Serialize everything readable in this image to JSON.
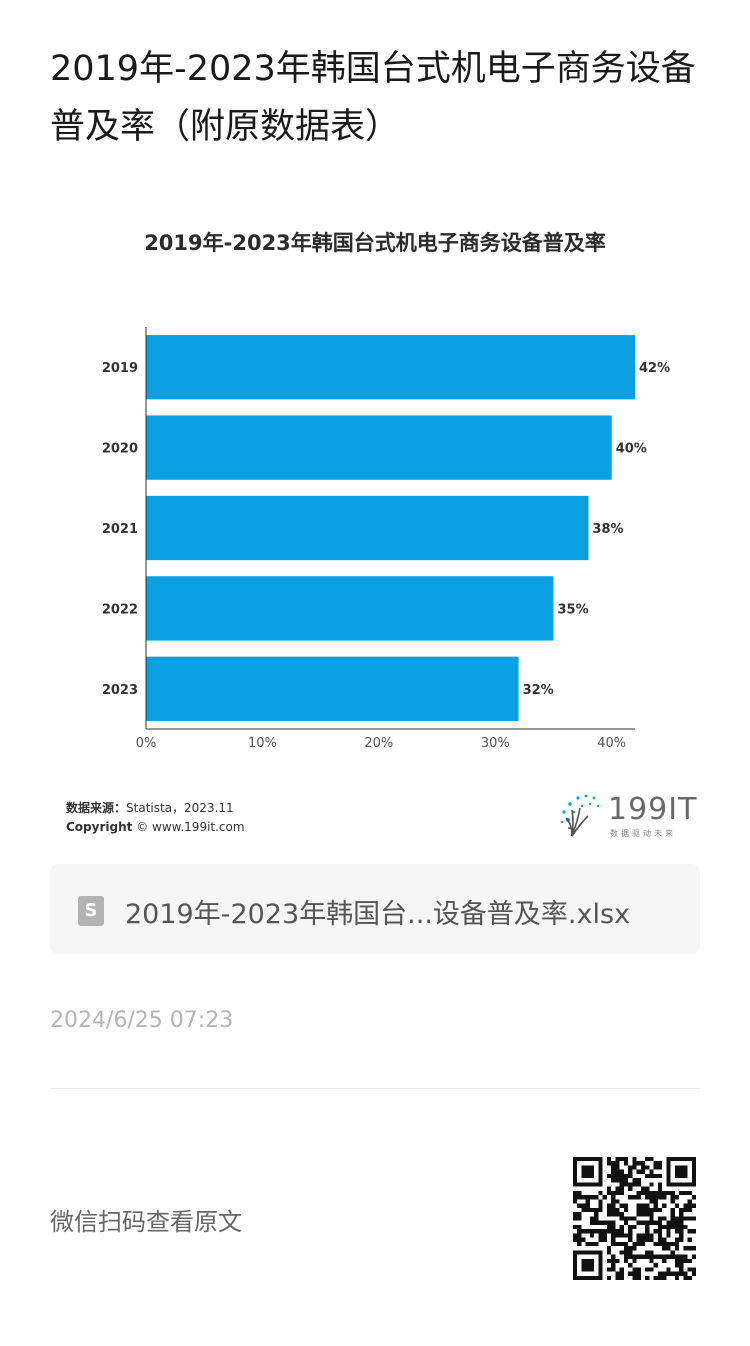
{
  "article": {
    "title": "2019年-2023年韩国台式机电子商务设备普及率（附原数据表）"
  },
  "chart_data": {
    "type": "bar",
    "orientation": "horizontal",
    "title": "2019年-2023年韩国台式机电子商务设备普及率",
    "categories": [
      "2019",
      "2020",
      "2021",
      "2022",
      "2023"
    ],
    "values": [
      42,
      40,
      38,
      35,
      32
    ],
    "value_labels": [
      "42%",
      "40%",
      "38%",
      "35%",
      "32%"
    ],
    "x_ticks": [
      "0%",
      "10%",
      "20%",
      "30%",
      "40%"
    ],
    "xlim": [
      0,
      42
    ],
    "grid": false,
    "bar_color": "#0aa0e2",
    "source_label": "数据来源：",
    "source_value": "Statista，2023.11",
    "copyright_label": "Copyright",
    "copyright_value": "© www.199it.com"
  },
  "brand": {
    "logo_text": "199IT",
    "tagline": "数据驱动未来"
  },
  "attachment": {
    "file_icon_letter": "S",
    "file_name": "2019年-2023年韩国台...设备普及率.xlsx"
  },
  "meta": {
    "timestamp": "2024/6/25 07:23"
  },
  "footer": {
    "scan_text": "微信扫码查看原文"
  }
}
